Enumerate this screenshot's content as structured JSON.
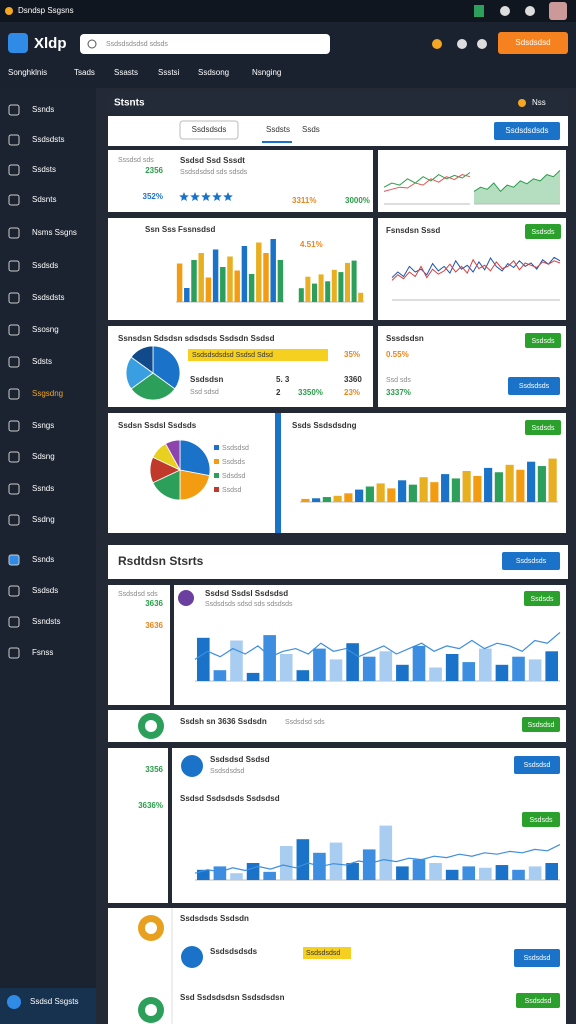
{
  "topbar": {
    "title": "Dsndsp Ssgsns"
  },
  "header": {
    "logo": "Xldp",
    "search": "Ssdsdsdsdsd sdsds",
    "button": "Sdsdsdsd"
  },
  "nav": [
    "Songhklnis",
    "Tsads",
    "Ssasts",
    "Ssstsi",
    "Ssdsong",
    "Nsnging"
  ],
  "sidebar": [
    "Ssnds",
    "Ssdsdsts",
    "Ssdsts",
    "Sdsnts",
    "Nsms Ssgns",
    "Ssdsds",
    "Ssdsdsts",
    "Ssosng",
    "Sdsts",
    "Ssgsdng",
    "Ssngs",
    "Sdsng",
    "Ssnds",
    "Ssdng",
    "Ssnds",
    "Ssdsds",
    "Ssndsts",
    "Fsnss"
  ],
  "footer": "Ssdsd Ssgsts",
  "section1": {
    "title": "Stsnts",
    "badge": "Nss"
  },
  "toolbar": {
    "tab": "Ssdsdsds",
    "items": [
      "Ssdsts",
      "Ssds"
    ],
    "button": "Ssdsdsdsds"
  },
  "row1": {
    "label": "Sssdsd sds",
    "value": "2356",
    "pct": "352%",
    "name": "Ssdsd Ssd Sssdt",
    "sub": "Ssdsdsdsd sds sdsds",
    "orange": "3311%",
    "green": "3000%"
  },
  "row2": {
    "label": "Ssn Sss",
    "title": "Fssnsdsd",
    "kpi": "4.51%",
    "right_title": "Fsnsdsn Sssd",
    "button": "Ssdsds"
  },
  "row3": {
    "title": "Ssnsdsn Sdsdsn sdsdsds Ssdsdn Ssdsd",
    "highlight": "Ssdsdsdsdsd Ssdsd Sdsd",
    "pct": "35%",
    "name": "Ssdsdsn",
    "sub": "Ssd sdsd",
    "n1": "5. 3",
    "n2": "2",
    "v1": "3360",
    "v2": "23%",
    "green": "3350%",
    "right_title": "Sssdsdsn",
    "button": "Ssdsds",
    "right_pct": "0.55%",
    "right_sub": "Ssd sds",
    "right_green": "3337%",
    "button2": "Ssdsdsds"
  },
  "row4": {
    "title": "Ssdsn Ssdsl Ssdsds",
    "legend": [
      "Ssdsdsd",
      "Ssdsds",
      "Sdsdsd",
      "Ssdsd"
    ],
    "title2": "Ssds Ssdsdsdng",
    "button": "Ssdsds"
  },
  "section2": {
    "title": "Rsdtdsn Stsrts",
    "button": "Ssdsdsds"
  },
  "row5": {
    "label": "Ssdsdsd sds",
    "value": "3636",
    "v2": "3636",
    "title": "Ssdsd Ssdsl Ssdsdsd",
    "sub": "Ssdsdsds sdsd sds sdsdsds",
    "button": "Ssdsds"
  },
  "row6": {
    "title": "Ssdsh sn 3636 Ssdsdn",
    "sub": "Ssdsdsd sds",
    "button": "Ssdsdsd",
    "name": "Ssdsdsd Ssdsd",
    "sub2": "Ssdsdsdsd",
    "button2": "Ssdsdsd",
    "title2": "Ssdsd Ssdsdsds Ssdsdsd",
    "button3": "Ssdsds",
    "value": "3356",
    "pct": "3636%"
  },
  "row7": {
    "title": "Ssdsdsds Ssdsdn",
    "name": "Ssdsdsdsds",
    "highlight": "Ssdsdsdsd",
    "button": "Ssdsdsd",
    "title2": "Ssd Ssdsdsdsn Ssdsdsdsn",
    "button2": "Ssdsdsd"
  },
  "charts": [
    {
      "type": "line",
      "ylim": [
        0,
        10
      ],
      "series": [
        {
          "color": "#2a9d4a",
          "values": [
            4,
            5,
            4.5,
            6,
            5,
            6.5,
            5.5,
            7,
            6,
            6.8,
            6.2,
            7.5
          ]
        },
        {
          "color": "#e05555",
          "values": [
            3,
            3.5,
            4,
            3.8,
            5,
            4.5,
            6,
            5.2,
            6.5,
            5.8,
            7,
            6.5
          ]
        }
      ]
    },
    {
      "type": "area",
      "ylim": [
        0,
        10
      ],
      "color": "#2a9d4a",
      "values": [
        3,
        4,
        3.5,
        5,
        3,
        4.5,
        4,
        5.5,
        4.8,
        6,
        5.5,
        7,
        6.5,
        8
      ]
    },
    {
      "type": "bar",
      "ylim": [
        0,
        100
      ],
      "colors": [
        "#f39c12",
        "#1a73c8",
        "#2ca05a",
        "#e8b020"
      ],
      "values": [
        55,
        20,
        60,
        70,
        35,
        75,
        50,
        65,
        45,
        80,
        40,
        85,
        70,
        90,
        60
      ]
    },
    {
      "type": "bar",
      "ylim": [
        0,
        100
      ],
      "colors": [
        "#2ca05a",
        "#e8b020"
      ],
      "values": [
        30,
        55,
        40,
        60,
        45,
        70,
        65,
        85,
        90,
        20
      ]
    },
    {
      "type": "line",
      "ylim": [
        0,
        10
      ],
      "series": [
        {
          "color": "#1a56b0",
          "values": [
            4,
            5,
            4.2,
            6,
            5,
            5.5,
            4.5,
            6.5,
            5.2,
            6,
            4.8,
            7,
            5.5,
            6.2,
            5,
            6.8,
            5.4,
            7.5,
            6,
            5.2,
            6.5,
            5.8,
            7,
            6,
            6.6,
            5.5,
            7.2,
            6.4,
            7.6,
            7
          ]
        },
        {
          "color": "#d84040",
          "values": [
            3.5,
            4.5,
            3.8,
            5,
            4.2,
            6,
            4,
            5.5,
            4.6,
            5.2,
            6.4,
            5,
            6,
            4.8,
            7.2,
            5.6,
            6.2,
            5.2,
            6.8,
            5.6,
            6,
            7,
            5.4,
            6.6,
            6.2,
            5.8,
            6.8,
            6.4,
            7,
            6.6
          ]
        }
      ]
    },
    {
      "type": "pie",
      "colors": [
        "#1a73c8",
        "#2ca05a",
        "#3a9fe0",
        "#114a8a"
      ],
      "values": [
        35,
        30,
        20,
        15
      ]
    },
    {
      "type": "pie",
      "colors": [
        "#1a73c8",
        "#f39c12",
        "#2ca05a",
        "#c0392b",
        "#e8d020",
        "#8e44ad"
      ],
      "values": [
        28,
        22,
        18,
        14,
        10,
        8
      ]
    },
    {
      "type": "bar",
      "ylim": [
        0,
        100
      ],
      "colors": [
        "#f39c12",
        "#1a73c8",
        "#2ca05a",
        "#e8b020"
      ],
      "values": [
        5,
        6,
        8,
        10,
        14,
        20,
        25,
        30,
        22,
        35,
        28,
        40,
        32,
        45,
        38,
        50,
        42,
        55,
        48,
        60,
        52,
        65,
        58,
        70
      ]
    },
    {
      "type": "combo",
      "ylim": [
        0,
        100
      ],
      "colors": [
        "#1a73c8",
        "#3d8ee0",
        "#a9cdf0"
      ],
      "values": [
        80,
        20,
        75,
        15,
        85,
        50,
        20,
        60,
        40,
        70,
        45,
        55,
        30,
        65,
        25,
        50,
        35,
        60,
        30,
        45,
        40,
        55
      ],
      "line_color": "#3d8ee0",
      "line": [
        40,
        55,
        45,
        60,
        50,
        65,
        45,
        55,
        60,
        50,
        70,
        55,
        60,
        45,
        55,
        65,
        50,
        60,
        70,
        55,
        65,
        60,
        75,
        60,
        70,
        65,
        55,
        75,
        70,
        90
      ]
    },
    {
      "type": "combo",
      "ylim": [
        0,
        100
      ],
      "colors": [
        "#1a73c8",
        "#3d8ee0",
        "#a9cdf0"
      ],
      "values": [
        15,
        20,
        10,
        25,
        12,
        50,
        60,
        40,
        55,
        25,
        45,
        80,
        20,
        30,
        25,
        15,
        20,
        18,
        22,
        15,
        20,
        25
      ],
      "line_color": "#3d8ee0",
      "line": [
        10,
        15,
        12,
        18,
        14,
        20,
        16,
        22,
        18,
        25,
        20,
        24,
        22,
        28,
        25,
        30,
        27,
        32,
        30,
        35,
        33,
        38,
        35,
        40,
        38,
        42,
        40,
        45,
        43,
        52
      ]
    }
  ]
}
